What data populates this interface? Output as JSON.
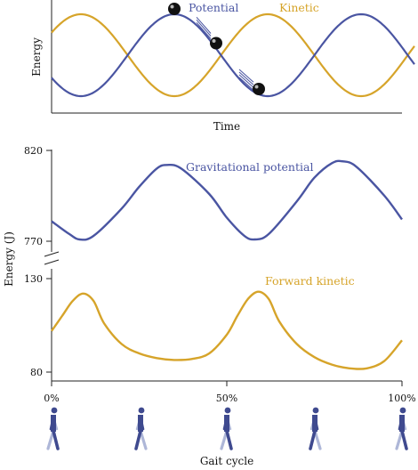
{
  "colors": {
    "potential": "#4a55a2",
    "kinetic": "#d6a42a",
    "figure": "#3f4a8f",
    "figure_limb": "#aeb7d8",
    "ball": "#111111",
    "axis": "#222222"
  },
  "chart_data": [
    {
      "type": "line",
      "title": "",
      "xlabel": "Time",
      "ylabel": "Energy",
      "grid": false,
      "series": [
        {
          "name": "Potential",
          "shape": "sine",
          "cycles": 2.1,
          "phase_start": "low"
        },
        {
          "name": "Kinetic",
          "shape": "sine",
          "cycles": 2.1,
          "phase_start": "high"
        }
      ],
      "annotations": [
        "ball-at-peak",
        "ball-descending",
        "ball-at-trough"
      ]
    },
    {
      "type": "line",
      "title": "",
      "xlabel": "Gait cycle",
      "ylabel": "Energy (J)",
      "x_ticks": [
        "0%",
        "50%",
        "100%"
      ],
      "x_range": [
        0,
        100
      ],
      "axis_break": true,
      "upper_panel": {
        "y_ticks": [
          820,
          770
        ],
        "y_range": [
          770,
          820
        ],
        "series": {
          "name": "Gravitational potential",
          "x": [
            0,
            5,
            8,
            12,
            20,
            25,
            30,
            33,
            37,
            45,
            50,
            55,
            58,
            62,
            70,
            75,
            80,
            83,
            87,
            95,
            100
          ],
          "y": [
            781,
            774,
            771,
            773,
            788,
            800,
            810,
            812,
            810,
            796,
            783,
            773,
            771,
            774,
            792,
            805,
            813,
            814,
            811,
            795,
            782
          ]
        }
      },
      "lower_panel": {
        "y_ticks": [
          130,
          80
        ],
        "y_range": [
          80,
          130
        ],
        "series": {
          "name": "Forward kinetic",
          "x": [
            0,
            3,
            6,
            9,
            12,
            15,
            20,
            25,
            30,
            35,
            40,
            45,
            50,
            53,
            56,
            59,
            62,
            65,
            70,
            75,
            80,
            85,
            90,
            95,
            100
          ],
          "y": [
            102,
            110,
            118,
            122,
            118,
            106,
            95,
            90,
            87.5,
            86.5,
            87,
            90,
            100,
            110,
            119,
            123,
            119,
            107,
            95,
            88,
            84,
            82,
            82,
            86,
            97
          ]
        }
      }
    }
  ],
  "labels": {
    "top_xlabel": "Time",
    "top_ylabel": "Energy",
    "top_potential": "Potential",
    "top_kinetic": "Kinetic",
    "bottom_ylabel": "Energy (J)",
    "bottom_xlabel": "Gait cycle",
    "potential_series": "Gravitational potential",
    "kinetic_series": "Forward kinetic",
    "y820": "820",
    "y770": "770",
    "y130": "130",
    "y80": "80",
    "x0": "0%",
    "x50": "50%",
    "x100": "100%"
  }
}
